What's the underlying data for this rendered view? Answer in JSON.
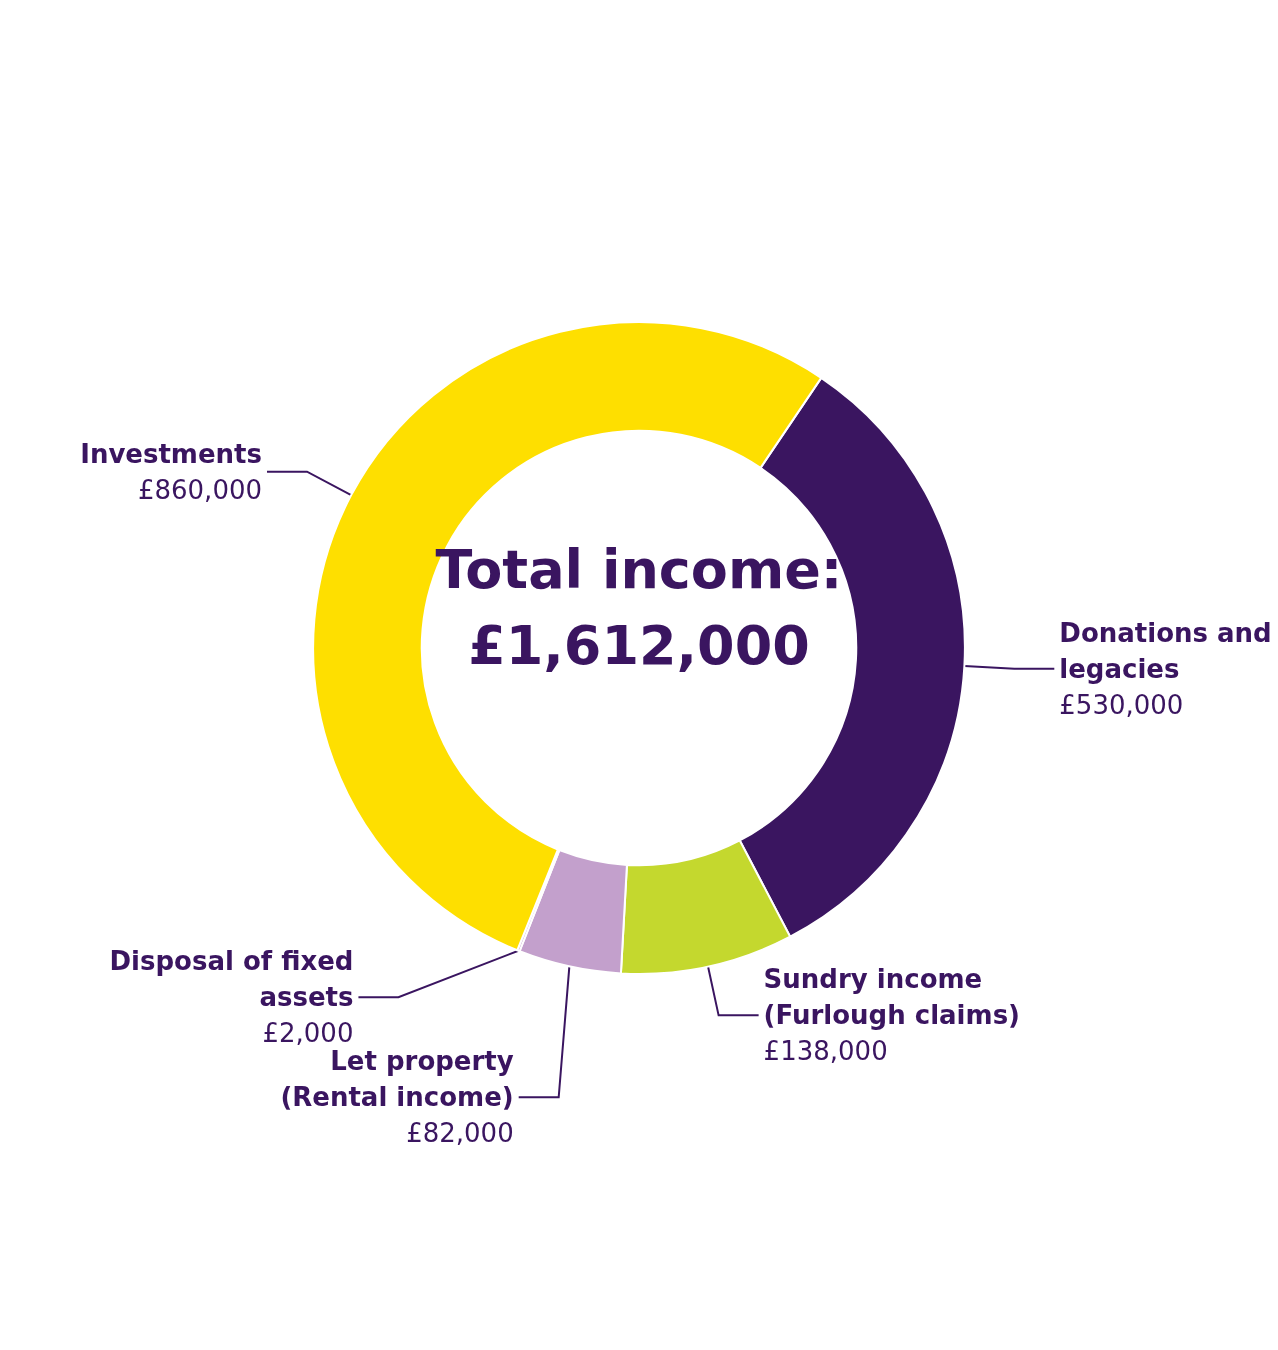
{
  "chart_data": {
    "type": "donut",
    "title": "Total income: £1,612,000",
    "categories": [
      "Donations and legacies",
      "Sundry income (Furlough claims)",
      "Let property (Rental income)",
      "Disposal of fixed assets",
      "Investments"
    ],
    "values": [
      530000,
      138000,
      82000,
      2000,
      860000
    ],
    "value_labels": [
      "£530,000",
      "£138,000",
      "£82,000",
      "£2,000",
      "£860,000"
    ],
    "colors": [
      "#3a1560",
      "#c4d82e",
      "#c3a0cc",
      "#b895c4",
      "#fedf00"
    ],
    "legend": false
  }
}
